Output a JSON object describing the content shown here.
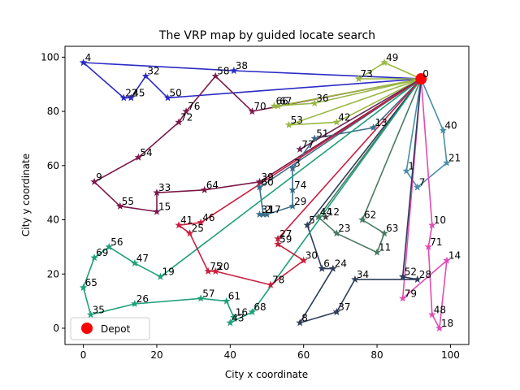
{
  "chart_data": {
    "type": "line",
    "title": "The VRP map by guided locate search",
    "xlabel": "City x coordinate",
    "ylabel": "City y coordinate",
    "xlim": [
      -5,
      105
    ],
    "ylim": [
      -6,
      104
    ],
    "xticks": [
      0,
      20,
      40,
      60,
      80,
      100
    ],
    "yticks": [
      0,
      20,
      40,
      60,
      80,
      100
    ],
    "grid": false,
    "legend": {
      "placement": "lower-left",
      "entries": [
        {
          "label": "Depot",
          "color": "#ff0000",
          "marker": "circle"
        }
      ]
    },
    "depot": {
      "id": "0",
      "x": 92,
      "y": 92
    },
    "cities": [
      {
        "id": "1",
        "x": 88,
        "y": 58
      },
      {
        "id": "2",
        "x": 49,
        "y": 42
      },
      {
        "id": "3",
        "x": 57,
        "y": 59
      },
      {
        "id": "4",
        "x": 0,
        "y": 98
      },
      {
        "id": "5",
        "x": 61,
        "y": 38
      },
      {
        "id": "6",
        "x": 65,
        "y": 22
      },
      {
        "id": "7",
        "x": 91,
        "y": 52
      },
      {
        "id": "8",
        "x": 59,
        "y": 2
      },
      {
        "id": "9",
        "x": 3,
        "y": 54
      },
      {
        "id": "10",
        "x": 95,
        "y": 38
      },
      {
        "id": "11",
        "x": 80,
        "y": 28
      },
      {
        "id": "12",
        "x": 66,
        "y": 41
      },
      {
        "id": "13",
        "x": 79,
        "y": 74
      },
      {
        "id": "14",
        "x": 99,
        "y": 25
      },
      {
        "id": "15",
        "x": 20,
        "y": 43
      },
      {
        "id": "16",
        "x": 41,
        "y": 4
      },
      {
        "id": "17",
        "x": 50,
        "y": 42
      },
      {
        "id": "18",
        "x": 97,
        "y": 0
      },
      {
        "id": "19",
        "x": 21,
        "y": 19
      },
      {
        "id": "20",
        "x": 36,
        "y": 21
      },
      {
        "id": "21",
        "x": 99,
        "y": 61
      },
      {
        "id": "22",
        "x": 11,
        "y": 85
      },
      {
        "id": "23",
        "x": 69,
        "y": 35
      },
      {
        "id": "24",
        "x": 68,
        "y": 22
      },
      {
        "id": "25",
        "x": 29,
        "y": 35
      },
      {
        "id": "26",
        "x": 14,
        "y": 9
      },
      {
        "id": "27",
        "x": 53,
        "y": 33
      },
      {
        "id": "28",
        "x": 91,
        "y": 18
      },
      {
        "id": "29",
        "x": 57,
        "y": 45
      },
      {
        "id": "30",
        "x": 60,
        "y": 25
      },
      {
        "id": "31",
        "x": 48,
        "y": 42
      },
      {
        "id": "32",
        "x": 17,
        "y": 93
      },
      {
        "id": "33",
        "x": 20,
        "y": 50
      },
      {
        "id": "34",
        "x": 74,
        "y": 18
      },
      {
        "id": "35",
        "x": 2,
        "y": 5
      },
      {
        "id": "36",
        "x": 63,
        "y": 83
      },
      {
        "id": "37",
        "x": 69,
        "y": 6
      },
      {
        "id": "38",
        "x": 41,
        "y": 95
      },
      {
        "id": "39",
        "x": 48,
        "y": 54
      },
      {
        "id": "40",
        "x": 98,
        "y": 73
      },
      {
        "id": "41",
        "x": 26,
        "y": 38
      },
      {
        "id": "42",
        "x": 69,
        "y": 76
      },
      {
        "id": "43",
        "x": 40,
        "y": 2
      },
      {
        "id": "44",
        "x": 64,
        "y": 41
      },
      {
        "id": "45",
        "x": 13,
        "y": 85
      },
      {
        "id": "46",
        "x": 32,
        "y": 39
      },
      {
        "id": "47",
        "x": 14,
        "y": 24
      },
      {
        "id": "48",
        "x": 95,
        "y": 5
      },
      {
        "id": "49",
        "x": 82,
        "y": 98
      },
      {
        "id": "50",
        "x": 23,
        "y": 85
      },
      {
        "id": "51",
        "x": 63,
        "y": 70
      },
      {
        "id": "52",
        "x": 87,
        "y": 19
      },
      {
        "id": "53",
        "x": 56,
        "y": 75
      },
      {
        "id": "54",
        "x": 15,
        "y": 63
      },
      {
        "id": "55",
        "x": 10,
        "y": 45
      },
      {
        "id": "56",
        "x": 7,
        "y": 30
      },
      {
        "id": "57",
        "x": 32,
        "y": 11
      },
      {
        "id": "58",
        "x": 36,
        "y": 93
      },
      {
        "id": "59",
        "x": 53,
        "y": 31
      },
      {
        "id": "60",
        "x": 48,
        "y": 52
      },
      {
        "id": "61",
        "x": 39,
        "y": 10
      },
      {
        "id": "62",
        "x": 76,
        "y": 40
      },
      {
        "id": "63",
        "x": 82,
        "y": 35
      },
      {
        "id": "64",
        "x": 33,
        "y": 51
      },
      {
        "id": "65",
        "x": 0,
        "y": 15
      },
      {
        "id": "66",
        "x": 52,
        "y": 82
      },
      {
        "id": "67",
        "x": 53,
        "y": 82
      },
      {
        "id": "68",
        "x": 46,
        "y": 6
      },
      {
        "id": "69",
        "x": 3,
        "y": 26
      },
      {
        "id": "70",
        "x": 46,
        "y": 80
      },
      {
        "id": "71",
        "x": 94,
        "y": 30
      },
      {
        "id": "72",
        "x": 26,
        "y": 76
      },
      {
        "id": "73",
        "x": 75,
        "y": 92
      },
      {
        "id": "74",
        "x": 57,
        "y": 51
      },
      {
        "id": "75",
        "x": 34,
        "y": 21
      },
      {
        "id": "76",
        "x": 28,
        "y": 80
      },
      {
        "id": "77",
        "x": 59,
        "y": 66
      },
      {
        "id": "78",
        "x": 51,
        "y": 16
      },
      {
        "id": "79",
        "x": 87,
        "y": 11
      }
    ],
    "routes": [
      {
        "color": "#2b2bc4",
        "path": [
          "0",
          "38",
          "4",
          "22",
          "45",
          "32",
          "50",
          "0"
        ]
      },
      {
        "color": "#7a1a4a",
        "path": [
          "0",
          "70",
          "58",
          "76",
          "72",
          "54",
          "9",
          "55",
          "15",
          "33",
          "64",
          "39",
          "0"
        ]
      },
      {
        "color": "#9ab843",
        "path": [
          "0",
          "49",
          "73",
          "0"
        ]
      },
      {
        "color": "#9ab843",
        "path": [
          "0",
          "67",
          "66",
          "36",
          "0"
        ]
      },
      {
        "color": "#9ab843",
        "path": [
          "0",
          "53",
          "42",
          "0"
        ]
      },
      {
        "color": "#4a8ea8",
        "path": [
          "0",
          "40",
          "21",
          "7",
          "1",
          "0"
        ]
      },
      {
        "color": "#e04cb4",
        "path": [
          "0",
          "10",
          "71",
          "48",
          "18",
          "14",
          "79",
          "0"
        ]
      },
      {
        "color": "#4a7a62",
        "path": [
          "0",
          "62",
          "63",
          "11",
          "23",
          "44",
          "0"
        ]
      },
      {
        "color": "#2d3d5a",
        "path": [
          "0",
          "52",
          "28",
          "34",
          "37",
          "8",
          "24",
          "6",
          "5",
          "0"
        ]
      },
      {
        "color": "#3b6e8a",
        "path": [
          "0",
          "13",
          "51",
          "3",
          "74",
          "29",
          "17",
          "31",
          "2",
          "60",
          "0"
        ]
      },
      {
        "color": "#1fa07a",
        "path": [
          "0",
          "19",
          "47",
          "56",
          "69",
          "65",
          "35",
          "26",
          "57",
          "61",
          "16",
          "43",
          "68",
          "0"
        ]
      },
      {
        "color": "#c91e3e",
        "path": [
          "0",
          "27",
          "59",
          "30",
          "78",
          "20",
          "75",
          "25",
          "41",
          "46",
          "0"
        ]
      },
      {
        "color": "#6a2a5a",
        "path": [
          "0",
          "77",
          "0"
        ]
      }
    ]
  }
}
